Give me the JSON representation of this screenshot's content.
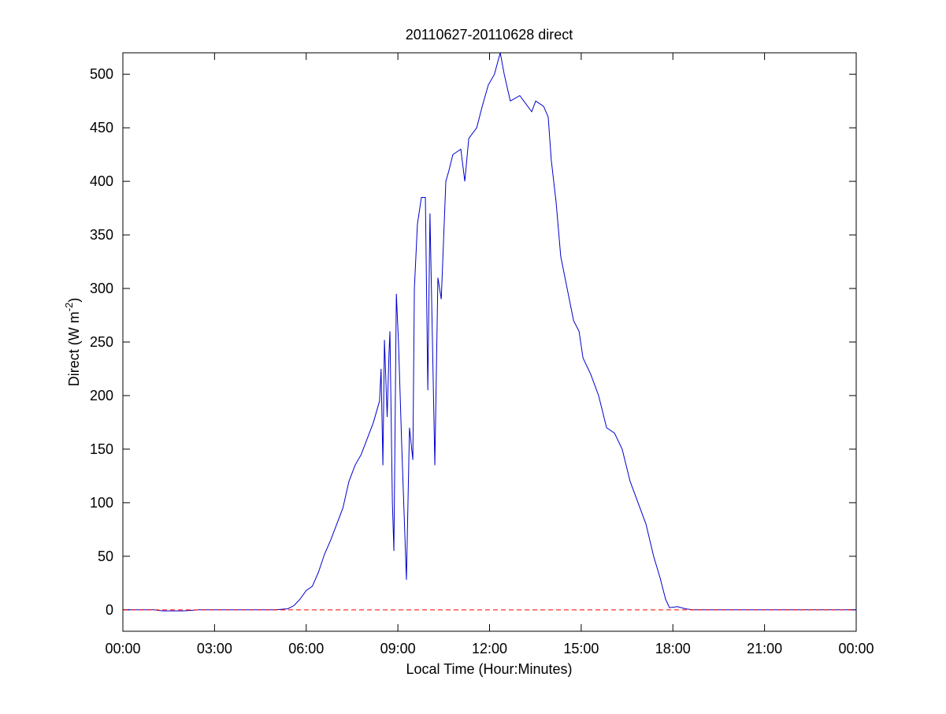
{
  "chart_data": {
    "type": "line",
    "title": "20110627-20110628 direct",
    "xlabel": "Local Time (Hour:Minutes)",
    "ylabel": {
      "text": "Direct (W m",
      "superscript": "-2",
      "suffix": ")"
    },
    "xlim": [
      0,
      24
    ],
    "xticks": [
      {
        "value": 0,
        "label": "00:00"
      },
      {
        "value": 3,
        "label": "03:00"
      },
      {
        "value": 6,
        "label": "06:00"
      },
      {
        "value": 9,
        "label": "09:00"
      },
      {
        "value": 12,
        "label": "12:00"
      },
      {
        "value": 15,
        "label": "15:00"
      },
      {
        "value": 18,
        "label": "18:00"
      },
      {
        "value": 21,
        "label": "21:00"
      },
      {
        "value": 24,
        "label": "00:00"
      }
    ],
    "ylim": [
      -20,
      520
    ],
    "yticks": [
      0,
      50,
      100,
      150,
      200,
      250,
      300,
      350,
      400,
      450,
      500
    ],
    "reference_line": {
      "value": 0,
      "color": "#ff0000",
      "style": "dashed"
    },
    "series": [
      {
        "color": "#0000cc",
        "x": [
          0,
          1.0,
          1.3,
          2.0,
          2.5,
          3.0,
          5.0,
          5.4,
          5.6,
          5.8,
          6.0,
          6.2,
          6.4,
          6.6,
          6.8,
          7.0,
          7.2,
          7.4,
          7.6,
          7.8,
          8.0,
          8.2,
          8.4,
          8.45,
          8.51,
          8.56,
          8.65,
          8.71,
          8.74,
          8.82,
          8.87,
          8.95,
          9.02,
          9.13,
          9.28,
          9.38,
          9.49,
          9.54,
          9.64,
          9.77,
          9.9,
          9.98,
          10.05,
          10.21,
          10.31,
          10.42,
          10.57,
          10.67,
          10.8,
          11.06,
          11.19,
          11.32,
          11.58,
          11.76,
          11.96,
          12.16,
          12.35,
          12.48,
          12.68,
          12.99,
          13.38,
          13.51,
          13.77,
          13.92,
          14.02,
          14.18,
          14.33,
          14.54,
          14.75,
          14.93,
          15.06,
          15.31,
          15.57,
          15.83,
          16.09,
          16.34,
          16.6,
          16.86,
          17.12,
          17.37,
          17.58,
          17.76,
          17.89,
          18.15,
          18.41,
          18.66,
          24
        ],
        "values": [
          0,
          0,
          -1,
          -1,
          0,
          0,
          0,
          1,
          4,
          10,
          18,
          22,
          35,
          52,
          65,
          80,
          95,
          120,
          135,
          145,
          160,
          175,
          195,
          225,
          135,
          252,
          180,
          240,
          260,
          100,
          55,
          295,
          250,
          150,
          28,
          170,
          140,
          300,
          360,
          385,
          385,
          205,
          370,
          135,
          310,
          290,
          400,
          410,
          425,
          430,
          400,
          440,
          450,
          470,
          490,
          500,
          520,
          500,
          475,
          480,
          465,
          475,
          470,
          460,
          420,
          380,
          330,
          300,
          270,
          260,
          235,
          220,
          200,
          170,
          165,
          150,
          120,
          100,
          80,
          50,
          30,
          10,
          2,
          3,
          1,
          0,
          0
        ]
      }
    ]
  }
}
